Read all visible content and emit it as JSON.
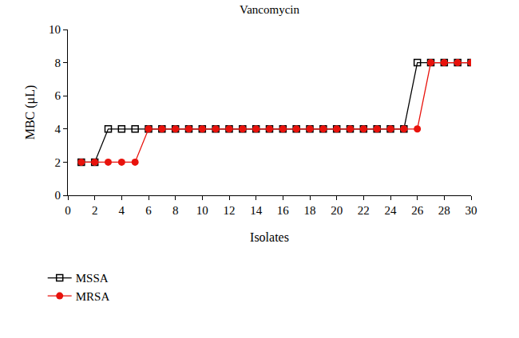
{
  "chart_data": {
    "type": "line",
    "title": "Vancomycin",
    "x_label": "Isolates",
    "y_label": "MBC (μL)",
    "x": [
      1,
      2,
      3,
      4,
      5,
      6,
      7,
      8,
      9,
      10,
      11,
      12,
      13,
      14,
      15,
      16,
      17,
      18,
      19,
      20,
      21,
      22,
      23,
      24,
      25,
      26,
      27,
      28,
      29,
      30
    ],
    "series": [
      {
        "name": "MSSA",
        "color": "#000000",
        "marker": "square-open",
        "line_style": "solid",
        "values": [
          2,
          2,
          4,
          4,
          4,
          4,
          4,
          4,
          4,
          4,
          4,
          4,
          4,
          4,
          4,
          4,
          4,
          4,
          4,
          4,
          4,
          4,
          4,
          4,
          4,
          8,
          8,
          8,
          8,
          8
        ]
      },
      {
        "name": "MRSA",
        "color": "#e8120c",
        "marker": "circle",
        "line_style": "solid",
        "values": [
          2,
          2,
          2,
          2,
          2,
          4,
          4,
          4,
          4,
          4,
          4,
          4,
          4,
          4,
          4,
          4,
          4,
          4,
          4,
          4,
          4,
          4,
          4,
          4,
          4,
          4,
          8,
          8,
          8,
          8
        ]
      }
    ],
    "xlim": [
      0,
      30
    ],
    "xticks": [
      0,
      2,
      4,
      6,
      8,
      10,
      12,
      14,
      16,
      18,
      20,
      22,
      24,
      26,
      28,
      30
    ],
    "ylim": [
      0,
      10
    ],
    "yticks": [
      0,
      2,
      4,
      6,
      8,
      10
    ],
    "grid": false,
    "legend": "bottom left"
  }
}
